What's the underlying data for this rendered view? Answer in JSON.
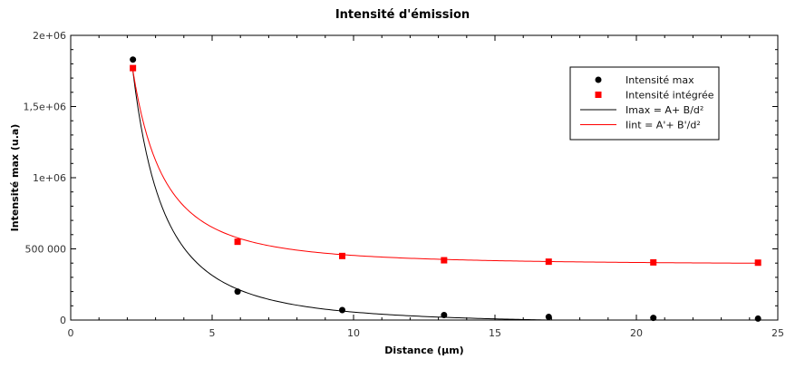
{
  "chart_data": {
    "type": "scatter",
    "title": "Intensité d'émission",
    "xlabel": "Distance (µm)",
    "ylabel": "Intensité max (u.a)",
    "xlim": [
      0,
      25
    ],
    "ylim": [
      0,
      2000000
    ],
    "x_ticks": [
      0,
      5,
      10,
      15,
      20,
      25
    ],
    "x_tick_labels": [
      "0",
      "5",
      "10",
      "15",
      "20",
      "25"
    ],
    "y_ticks": [
      0,
      500000,
      1000000,
      1500000,
      2000000
    ],
    "y_tick_labels": [
      "0",
      "500 000",
      "1e+06",
      "1,5e+06",
      "2e+06"
    ],
    "grid": false,
    "legend_position": "top-right",
    "series": [
      {
        "name": "Intensité max",
        "kind": "points",
        "marker": "circle",
        "color": "#000000",
        "points": [
          {
            "x": 2.2,
            "y": 1830000
          },
          {
            "x": 5.9,
            "y": 200000
          },
          {
            "x": 9.6,
            "y": 70000
          },
          {
            "x": 13.2,
            "y": 35000
          },
          {
            "x": 16.9,
            "y": 22000
          },
          {
            "x": 20.6,
            "y": 15000
          },
          {
            "x": 24.3,
            "y": 10000
          }
        ]
      },
      {
        "name": "Intensité intégrée",
        "kind": "points",
        "marker": "square",
        "color": "#ff0000",
        "points": [
          {
            "x": 2.2,
            "y": 1770000
          },
          {
            "x": 5.9,
            "y": 550000
          },
          {
            "x": 9.6,
            "y": 450000
          },
          {
            "x": 13.2,
            "y": 420000
          },
          {
            "x": 16.9,
            "y": 410000
          },
          {
            "x": 20.6,
            "y": 405000
          },
          {
            "x": 24.3,
            "y": 403000
          }
        ]
      },
      {
        "name": "Imax = A+ B/d²",
        "kind": "fit",
        "color": "#000000",
        "model": "A + B/d^2",
        "A": -30000,
        "B": 8600000,
        "x_range": [
          2.2,
          23.0
        ]
      },
      {
        "name": "Iint = A'+ B'/d²",
        "kind": "fit",
        "color": "#ff0000",
        "model": "A + B/d^2",
        "A": 388000,
        "B": 6600000,
        "x_range": [
          2.2,
          24.3
        ]
      }
    ]
  }
}
